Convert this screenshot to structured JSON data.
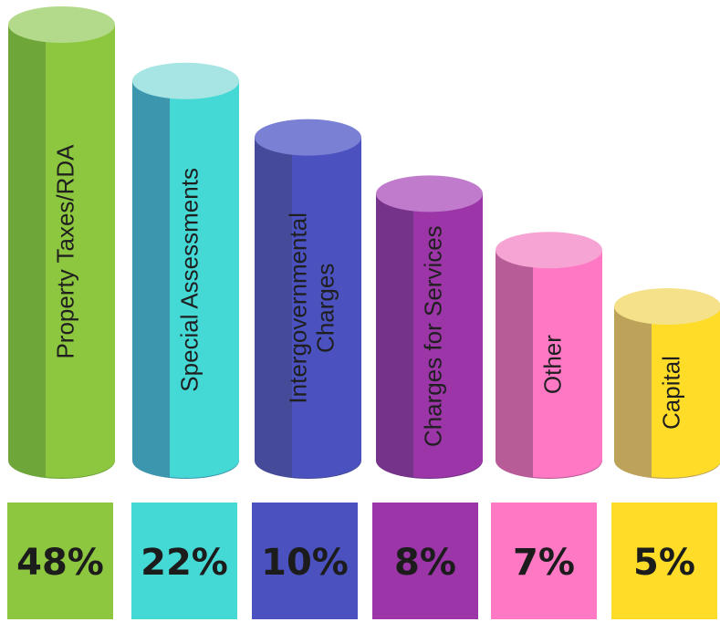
{
  "chart_data": {
    "type": "bar",
    "categories": [
      [
        "Property Taxes/RDA"
      ],
      [
        "Special Assessments"
      ],
      [
        "Intergovernmental",
        "Charges"
      ],
      [
        "Charges for Services"
      ],
      [
        "Other"
      ],
      [
        "Capital"
      ]
    ],
    "values": [
      48,
      22,
      10,
      8,
      7,
      5
    ],
    "value_labels": [
      "48%",
      "22%",
      "10%",
      "8%",
      "7%",
      "5%"
    ],
    "colors": {
      "front": [
        "#8DC63F",
        "#45D9D6",
        "#4B52C0",
        "#9B35A8",
        "#FF78C4",
        "#FFDC28"
      ],
      "side": [
        "#6FA63A",
        "#3C97AE",
        "#454A99",
        "#76338A",
        "#B85C97",
        "#BDA25A"
      ],
      "top": [
        "#B3DA8A",
        "#A6E5E4",
        "#7A80D4",
        "#C07BCC",
        "#F5A4D4",
        "#F4E18A"
      ]
    }
  }
}
